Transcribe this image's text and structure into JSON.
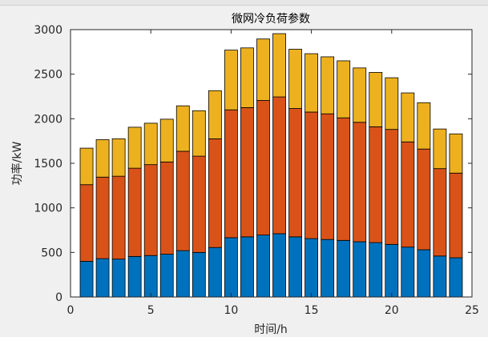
{
  "chart_data": {
    "type": "bar",
    "stacked": true,
    "title": "微网冷负荷参数",
    "xlabel": "时间/h",
    "ylabel": "功率/kW",
    "xlim": [
      0,
      25
    ],
    "ylim": [
      0,
      3000
    ],
    "xticks": [
      0,
      5,
      10,
      15,
      20,
      25
    ],
    "yticks": [
      0,
      500,
      1000,
      1500,
      2000,
      2500,
      3000
    ],
    "grid": false,
    "legend": false,
    "x": [
      1,
      2,
      3,
      4,
      5,
      6,
      7,
      8,
      9,
      10,
      11,
      12,
      13,
      14,
      15,
      16,
      17,
      18,
      19,
      20,
      21,
      22,
      23,
      24
    ],
    "series": [
      {
        "color": "#0072BD",
        "values": [
          400,
          430,
          425,
          455,
          465,
          480,
          520,
          500,
          555,
          665,
          675,
          695,
          710,
          675,
          655,
          645,
          635,
          620,
          610,
          590,
          560,
          530,
          460,
          440
        ]
      },
      {
        "color": "#D95319",
        "values": [
          860,
          915,
          930,
          990,
          1020,
          1035,
          1115,
          1080,
          1220,
          1435,
          1450,
          1510,
          1535,
          1440,
          1420,
          1410,
          1375,
          1340,
          1300,
          1290,
          1180,
          1130,
          980,
          950
        ]
      },
      {
        "color": "#EDB120",
        "values": [
          410,
          420,
          420,
          460,
          465,
          480,
          510,
          510,
          540,
          670,
          670,
          690,
          710,
          665,
          655,
          640,
          640,
          610,
          610,
          580,
          550,
          520,
          445,
          440
        ]
      }
    ]
  }
}
